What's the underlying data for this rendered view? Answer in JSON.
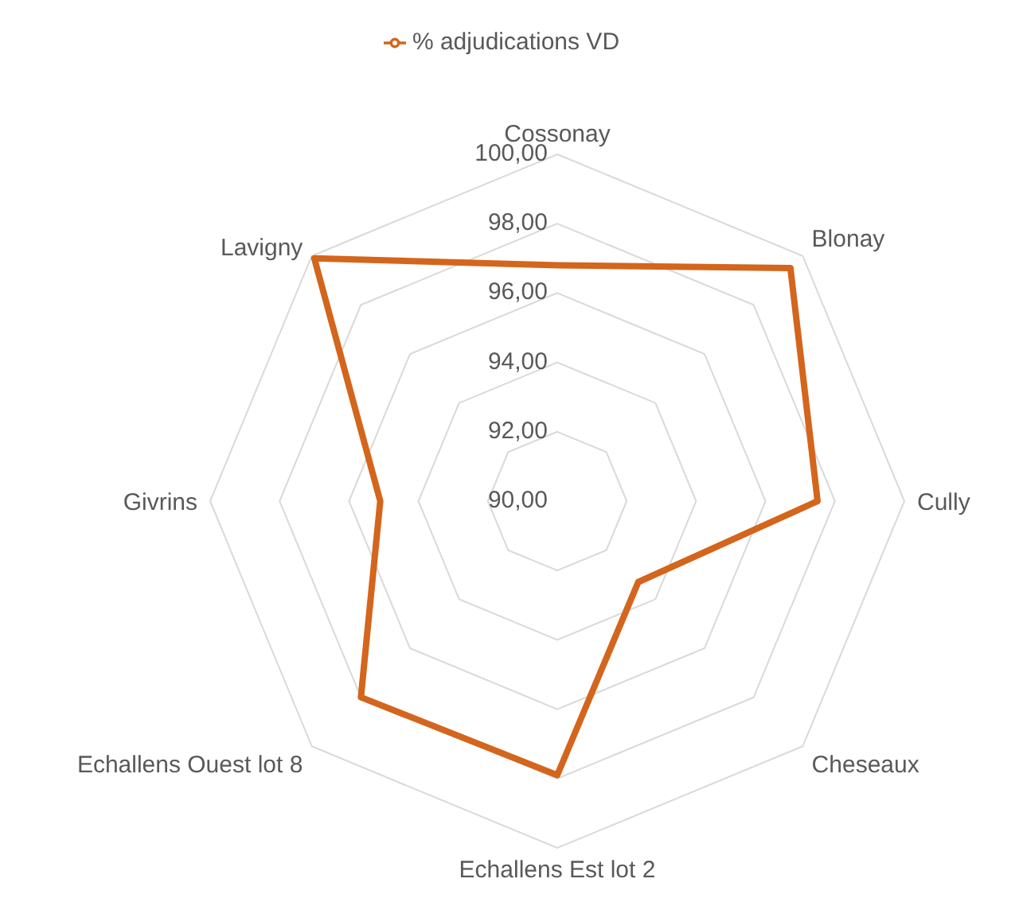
{
  "chart_data": {
    "type": "radar",
    "categories": [
      "Cossonay",
      "Blonay",
      "Cully",
      "Cheseaux",
      "Echallens Est lot 2",
      "Echallens Ouest lot 8",
      "Givrins",
      "Lavigny"
    ],
    "series": [
      {
        "name": "% adjudications VD",
        "color": "#d4651c",
        "values": [
          96.8,
          99.5,
          97.5,
          93.3,
          97.9,
          98.0,
          95.1,
          99.9
        ]
      }
    ],
    "ylim": [
      90,
      100
    ],
    "yticks": [
      {
        "value": 90,
        "label": "90,00"
      },
      {
        "value": 92,
        "label": "92,00"
      },
      {
        "value": 94,
        "label": "94,00"
      },
      {
        "value": 96,
        "label": "96,00"
      },
      {
        "value": 98,
        "label": "98,00"
      },
      {
        "value": 100,
        "label": "100,00"
      }
    ],
    "grid": true,
    "legend": "top",
    "marker": "none"
  }
}
